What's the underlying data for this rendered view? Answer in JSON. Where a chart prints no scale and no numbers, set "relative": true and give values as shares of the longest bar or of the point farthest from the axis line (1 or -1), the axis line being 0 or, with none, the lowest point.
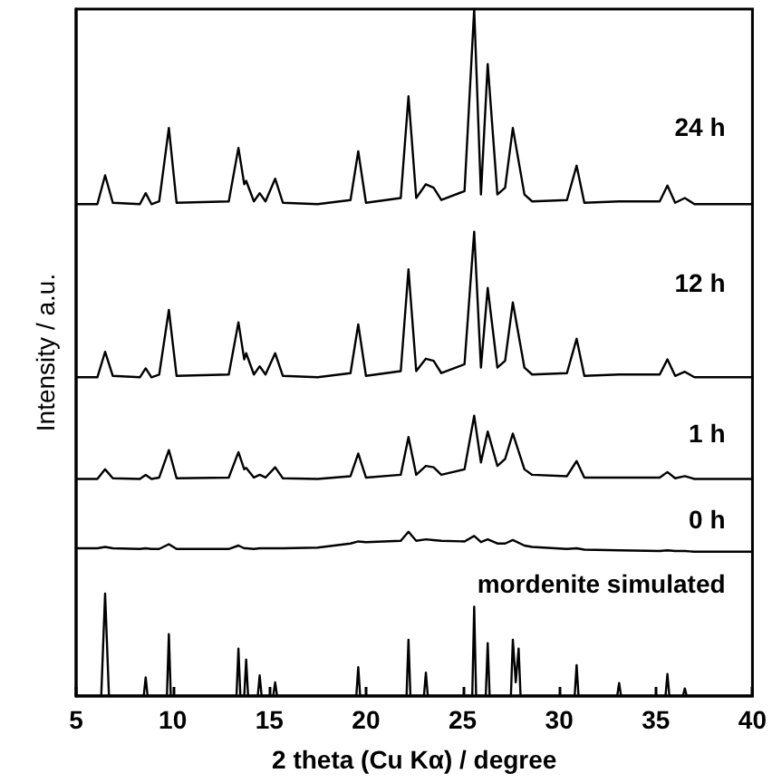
{
  "chart_data": {
    "type": "line",
    "relative": true,
    "xlabel": "2 theta (Cu Kα) / degree",
    "ylabel": "Intensity / a.u.",
    "xlim": [
      5,
      40
    ],
    "xticks": [
      5,
      10,
      15,
      20,
      25,
      30,
      35,
      40
    ],
    "grid": false,
    "marker": "none",
    "line_style": "solid",
    "x": [
      5,
      6.1,
      6.5,
      6.9,
      8.3,
      8.6,
      8.9,
      9.3,
      9.8,
      10.2,
      12.9,
      13.4,
      13.7,
      13.8,
      14.2,
      14.5,
      14.8,
      15.3,
      15.7,
      17.5,
      19.2,
      19.6,
      20.0,
      21.8,
      22.2,
      22.6,
      23.1,
      23.5,
      23.9,
      25.1,
      25.6,
      25.95,
      26.3,
      26.8,
      27.2,
      27.6,
      28.2,
      28.6,
      30.4,
      30.9,
      31.3,
      33.1,
      35.2,
      35.6,
      36.0,
      36.5,
      37.0,
      40
    ],
    "series": [
      {
        "name": "24 h",
        "color": "#000000",
        "values": [
          0.716,
          0.716,
          0.758,
          0.718,
          0.716,
          0.732,
          0.716,
          0.72,
          0.827,
          0.718,
          0.72,
          0.798,
          0.745,
          0.75,
          0.72,
          0.732,
          0.72,
          0.753,
          0.718,
          0.716,
          0.722,
          0.793,
          0.718,
          0.725,
          0.873,
          0.725,
          0.745,
          0.74,
          0.722,
          0.735,
          1.0,
          0.73,
          0.92,
          0.73,
          0.74,
          0.827,
          0.73,
          0.72,
          0.722,
          0.772,
          0.718,
          0.72,
          0.72,
          0.743,
          0.718,
          0.725,
          0.716,
          0.716
        ]
      },
      {
        "name": "12 h",
        "color": "#000000",
        "values": [
          0.464,
          0.464,
          0.501,
          0.466,
          0.464,
          0.477,
          0.464,
          0.468,
          0.562,
          0.466,
          0.468,
          0.544,
          0.49,
          0.499,
          0.468,
          0.48,
          0.468,
          0.499,
          0.466,
          0.464,
          0.47,
          0.541,
          0.466,
          0.473,
          0.621,
          0.473,
          0.491,
          0.488,
          0.47,
          0.483,
          0.676,
          0.478,
          0.594,
          0.478,
          0.488,
          0.573,
          0.478,
          0.468,
          0.47,
          0.52,
          0.466,
          0.468,
          0.468,
          0.49,
          0.466,
          0.472,
          0.464,
          0.464
        ]
      },
      {
        "name": "1 h",
        "color": "#000000",
        "values": [
          0.316,
          0.316,
          0.33,
          0.317,
          0.316,
          0.322,
          0.316,
          0.318,
          0.358,
          0.317,
          0.318,
          0.355,
          0.33,
          0.332,
          0.318,
          0.322,
          0.318,
          0.333,
          0.317,
          0.316,
          0.32,
          0.353,
          0.318,
          0.322,
          0.377,
          0.322,
          0.335,
          0.333,
          0.322,
          0.33,
          0.408,
          0.34,
          0.385,
          0.335,
          0.345,
          0.382,
          0.33,
          0.322,
          0.32,
          0.342,
          0.318,
          0.318,
          0.318,
          0.326,
          0.317,
          0.32,
          0.316,
          0.316
        ]
      },
      {
        "name": "0 h",
        "color": "#000000",
        "values": [
          0.215,
          0.215,
          0.217,
          0.215,
          0.214,
          0.215,
          0.214,
          0.214,
          0.221,
          0.214,
          0.214,
          0.219,
          0.215,
          0.215,
          0.214,
          0.215,
          0.215,
          0.215,
          0.215,
          0.216,
          0.222,
          0.225,
          0.224,
          0.226,
          0.239,
          0.226,
          0.228,
          0.227,
          0.226,
          0.225,
          0.233,
          0.224,
          0.228,
          0.222,
          0.222,
          0.227,
          0.219,
          0.217,
          0.214,
          0.215,
          0.213,
          0.212,
          0.211,
          0.212,
          0.211,
          0.211,
          0.21,
          0.21
        ]
      },
      {
        "name": "mordenite simulated",
        "color": "#000000",
        "x": [
          5,
          6.3,
          6.5,
          6.7,
          8.5,
          8.6,
          8.7,
          9.7,
          9.8,
          9.9,
          13.3,
          13.4,
          13.5,
          13.7,
          13.8,
          13.9,
          14.4,
          14.5,
          14.6,
          15.2,
          15.3,
          15.4,
          19.5,
          19.6,
          19.7,
          22.1,
          22.2,
          22.3,
          23.0,
          23.1,
          23.2,
          25.5,
          25.6,
          25.7,
          26.2,
          26.3,
          26.4,
          27.5,
          27.6,
          27.75,
          27.9,
          28.0,
          30.8,
          30.9,
          31.0,
          33.0,
          33.1,
          33.2,
          35.5,
          35.6,
          35.7,
          36.4,
          36.5,
          36.6,
          40
        ],
        "values": [
          0,
          0,
          0.149,
          0,
          0,
          0.027,
          0,
          0,
          0.09,
          0,
          0,
          0.069,
          0,
          0,
          0.053,
          0,
          0,
          0.03,
          0,
          0,
          0.02,
          0,
          0,
          0.042,
          0,
          0,
          0.082,
          0,
          0,
          0.034,
          0,
          0,
          0.13,
          0,
          0,
          0.077,
          0,
          0,
          0.082,
          0.02,
          0.069,
          0,
          0,
          0.045,
          0,
          0,
          0.019,
          0,
          0,
          0.032,
          0,
          0,
          0.011,
          0,
          0
        ]
      }
    ]
  }
}
